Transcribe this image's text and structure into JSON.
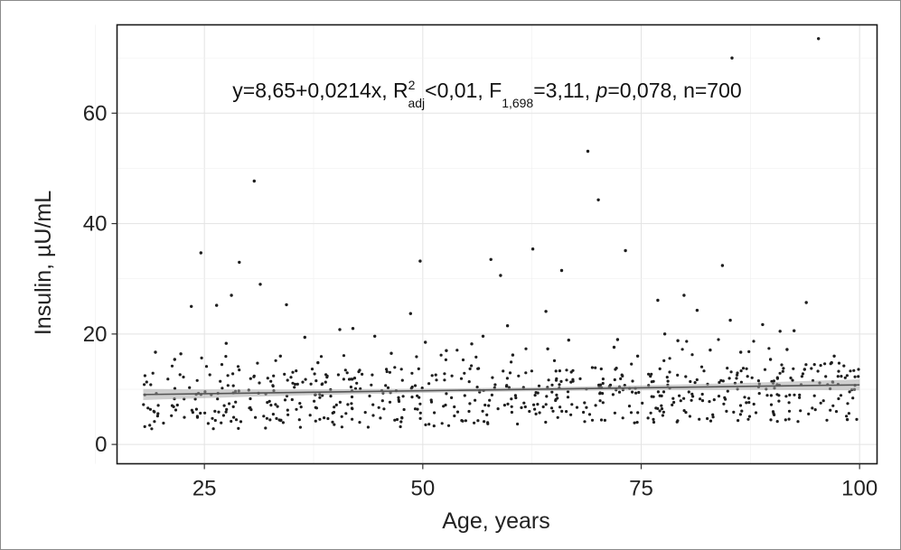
{
  "chart_data": {
    "type": "scatter",
    "title": "",
    "xlabel": "Age, years",
    "ylabel": "Insulin, µU/mL",
    "xlim": [
      15,
      102
    ],
    "ylim": [
      -3.5,
      76
    ],
    "x_ticks": [
      25,
      50,
      75,
      100
    ],
    "y_ticks": [
      0,
      20,
      40,
      60
    ],
    "grid": true,
    "annotation": {
      "prefix": "y=8,65+0,0214x, R",
      "r_sup": "2",
      "r_sub": "adj",
      "mid": "<0,01, F",
      "f_sub": "1,698",
      "mid2": "=3,11, ",
      "p_label": "p",
      "suffix": "=0,078, n=700"
    },
    "regression": {
      "intercept": 8.65,
      "slope": 0.0214,
      "x_range": [
        18,
        100
      ]
    },
    "series": [
      {
        "x": [
          30.7,
          24.6,
          29.0,
          31.4,
          23.5,
          26.4,
          28.1,
          34.4,
          49.7,
          57.8,
          58.9,
          62.6,
          64.1,
          65.9,
          68.9,
          70.1,
          73.2,
          76.9,
          79.9,
          81.4,
          84.3,
          85.4,
          85.2,
          93.9,
          97.1,
          95.3,
          64.3,
          59.7,
          40.5,
          42.0,
          36.5,
          48.6,
          55.6,
          72.3,
          77.7,
          88.9,
          90.9,
          92.5,
          19.4,
          21.6,
          22.3,
          27.5,
          33.7,
          38.0,
          44.5,
          46.4,
          50.3,
          52.7,
          56.9,
          60.3,
          66.7,
          71.9,
          74.6,
          79.2,
          82.9,
          86.4,
          89.8,
          91.7,
          93.7,
          96.8,
          98.6
        ],
        "y": [
          47.7,
          34.7,
          33.0,
          29.0,
          25.0,
          25.2,
          27.0,
          25.3,
          33.2,
          33.5,
          30.6,
          35.4,
          24.1,
          31.5,
          53.1,
          44.3,
          35.1,
          26.1,
          27.0,
          24.3,
          32.4,
          70.0,
          22.5,
          25.7,
          16.0,
          73.5,
          17.3,
          21.5,
          20.8,
          21.0,
          19.4,
          23.7,
          18.2,
          19.0,
          20.0,
          21.7,
          20.5,
          20.6,
          16.7,
          15.4,
          16.4,
          18.3,
          16.0,
          14.8,
          19.6,
          16.5,
          18.5,
          17.0,
          19.6,
          16.2,
          18.9,
          17.6,
          16.0,
          18.8,
          17.1,
          16.7,
          15.4,
          17.2,
          13.6,
          14.8,
          4.5
        ]
      }
    ]
  }
}
